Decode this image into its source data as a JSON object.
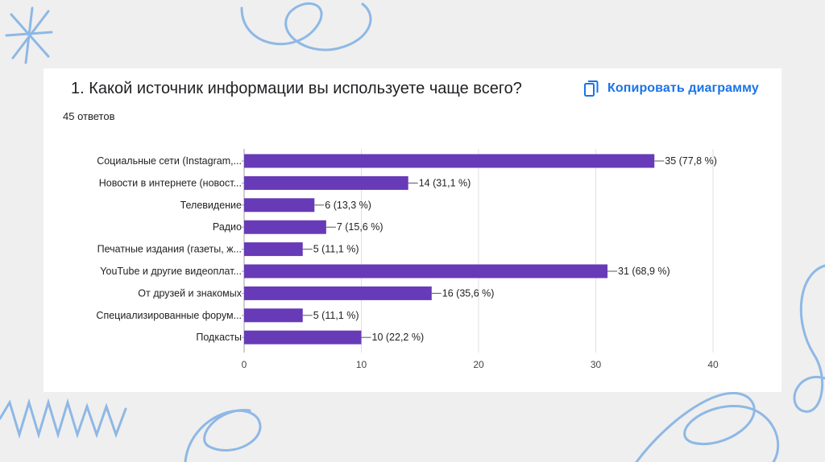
{
  "question": {
    "title": "1. Какой источник информации вы используете чаще всего?",
    "responses": "45 ответов"
  },
  "copy_button": {
    "label": "Копировать диаграмму",
    "icon": "copy-icon"
  },
  "colors": {
    "bar": "#673ab7",
    "accent": "#1a73e8",
    "doodle": "#8eb8e5"
  },
  "chart_data": {
    "type": "bar",
    "orientation": "horizontal",
    "categories": [
      "Социальные сети (Instagram,...",
      "Новости в интернете (новост...",
      "Телевидение",
      "Радио",
      "Печатные издания (газеты, ж...",
      "YouTube и другие видеоплат...",
      "От друзей и знакомых",
      "Специализированные форум...",
      "Подкасты"
    ],
    "values": [
      35,
      14,
      6,
      7,
      5,
      31,
      16,
      5,
      10
    ],
    "data_labels": [
      "35 (77,8 %)",
      "14 (31,1 %)",
      "6 (13,3 %)",
      "7 (15,6 %)",
      "5 (11,1 %)",
      "31 (68,9 %)",
      "16 (35,6 %)",
      "5 (11,1 %)",
      "10 (22,2 %)"
    ],
    "xlim": [
      0,
      40
    ],
    "xticks": [
      0,
      10,
      20,
      30,
      40
    ],
    "grid": true,
    "legend": "none"
  }
}
